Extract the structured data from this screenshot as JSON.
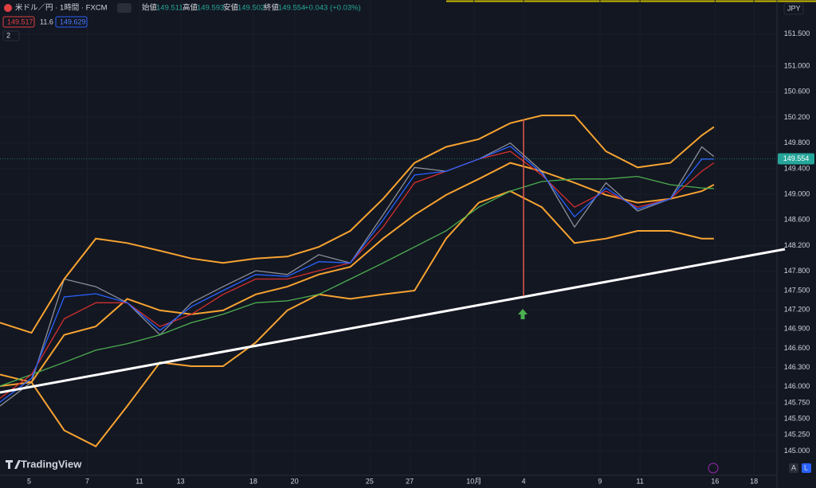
{
  "header": {
    "symbol": "米ドル／円 · 1時間 · FXCM",
    "open_label": "始値",
    "open": "149.511",
    "high_label": "高値",
    "high": "149.593",
    "low_label": "安値",
    "low": "149.502",
    "close_label": "終値",
    "close": "149.554",
    "change": "+0.043 (+0.03%)",
    "badge_red": "149.517",
    "badge_mid": "11.6",
    "badge_blue": "149.629",
    "indicators": "2",
    "currency": "JPY",
    "brand": "TradingView",
    "auto": "A",
    "log": "L"
  },
  "chart_data": {
    "type": "line",
    "x": [
      0,
      26,
      53,
      79,
      105,
      132,
      158,
      184,
      211,
      237,
      263,
      289,
      316,
      342,
      368,
      395,
      421,
      447,
      474,
      500,
      526,
      553,
      579,
      589
    ],
    "series": [
      {
        "color": "#8a8f98",
        "values": [
          145.7,
          146.07,
          147.68,
          147.56,
          147.31,
          146.81,
          147.31,
          147.56,
          147.81,
          147.75,
          148.06,
          147.93,
          148.68,
          149.42,
          149.36,
          149.55,
          149.8,
          149.36,
          148.49,
          149.18,
          148.74,
          148.93,
          149.74,
          149.59
        ]
      },
      {
        "color": "#f7a331",
        "values": [
          147.0,
          146.84,
          147.68,
          148.31,
          148.24,
          148.12,
          148.0,
          147.93,
          148.0,
          148.03,
          148.18,
          148.43,
          148.93,
          149.49,
          149.74,
          149.86,
          150.11,
          150.23,
          150.23,
          149.67,
          149.42,
          149.49,
          149.92,
          150.05
        ]
      },
      {
        "color": "#f7a331",
        "values": [
          146.01,
          146.07,
          146.81,
          146.94,
          147.37,
          147.19,
          147.13,
          147.19,
          147.44,
          147.56,
          147.75,
          147.87,
          148.31,
          148.68,
          148.99,
          149.24,
          149.49,
          149.36,
          149.18,
          148.99,
          148.87,
          148.93,
          149.05,
          149.15
        ]
      },
      {
        "color": "#f7a331",
        "values": [
          146.19,
          146.07,
          145.32,
          145.07,
          145.7,
          146.38,
          146.32,
          146.32,
          146.69,
          147.19,
          147.44,
          147.37,
          147.44,
          147.5,
          148.31,
          148.87,
          149.05,
          148.8,
          148.24,
          148.31,
          148.43,
          148.43,
          148.31,
          148.31
        ]
      },
      {
        "color": "#4caf50",
        "values": [
          146.01,
          146.19,
          146.38,
          146.57,
          146.67,
          146.81,
          147.0,
          147.13,
          147.31,
          147.34,
          147.44,
          147.68,
          147.93,
          148.18,
          148.43,
          148.8,
          149.05,
          149.2,
          149.24,
          149.24,
          149.28,
          149.15,
          149.1,
          149.09
        ]
      },
      {
        "color": "#d32f2f",
        "values": [
          145.82,
          146.19,
          147.06,
          147.31,
          147.31,
          146.94,
          147.13,
          147.44,
          147.68,
          147.68,
          147.81,
          147.93,
          148.49,
          149.18,
          149.36,
          149.55,
          149.67,
          149.3,
          148.8,
          149.05,
          148.8,
          148.93,
          149.36,
          149.49
        ]
      },
      {
        "color": "#2962ff",
        "values": [
          145.76,
          146.13,
          147.4,
          147.45,
          147.31,
          146.88,
          147.25,
          147.5,
          147.75,
          147.72,
          147.95,
          147.93,
          148.6,
          149.3,
          149.36,
          149.55,
          149.75,
          149.33,
          148.65,
          149.1,
          148.77,
          148.93,
          149.55,
          149.55
        ]
      }
    ],
    "xlim": [
      0,
      641
    ],
    "xticks": [
      {
        "value": 24,
        "label": "5"
      },
      {
        "value": 72,
        "label": "7"
      },
      {
        "value": 115,
        "label": "11"
      },
      {
        "value": 149,
        "label": "13"
      },
      {
        "value": 209,
        "label": "18"
      },
      {
        "value": 243,
        "label": "20"
      },
      {
        "value": 305,
        "label": "25"
      },
      {
        "value": 338,
        "label": "27"
      },
      {
        "value": 391,
        "label": "10月"
      },
      {
        "value": 432,
        "label": "4"
      },
      {
        "value": 495,
        "label": "9"
      },
      {
        "value": 528,
        "label": "11"
      },
      {
        "value": 590,
        "label": "16"
      },
      {
        "value": 622,
        "label": "18"
      }
    ],
    "ylim": [
      144.62,
      152.03
    ],
    "yticks": [
      {
        "value": 151.5,
        "label": "151.500"
      },
      {
        "value": 151.0,
        "label": "151.000"
      },
      {
        "value": 150.6,
        "label": "150.600"
      },
      {
        "value": 150.2,
        "label": "150.200"
      },
      {
        "value": 149.8,
        "label": "149.800"
      },
      {
        "value": 149.4,
        "label": "149.400"
      },
      {
        "value": 149.0,
        "label": "149.000"
      },
      {
        "value": 148.6,
        "label": "148.600"
      },
      {
        "value": 148.2,
        "label": "148.200"
      },
      {
        "value": 147.8,
        "label": "147.800"
      },
      {
        "value": 147.5,
        "label": "147.500"
      },
      {
        "value": 147.2,
        "label": "147.200"
      },
      {
        "value": 146.9,
        "label": "146.900"
      },
      {
        "value": 146.6,
        "label": "146.600"
      },
      {
        "value": 146.3,
        "label": "146.300"
      },
      {
        "value": 146.0,
        "label": "146.000"
      },
      {
        "value": 145.75,
        "label": "145.750"
      },
      {
        "value": 145.5,
        "label": "145.500"
      },
      {
        "value": 145.25,
        "label": "145.250"
      },
      {
        "value": 145.0,
        "label": "145.000"
      }
    ],
    "grid": true,
    "last_price": 149.554,
    "last_price_color": "#26a69a"
  }
}
